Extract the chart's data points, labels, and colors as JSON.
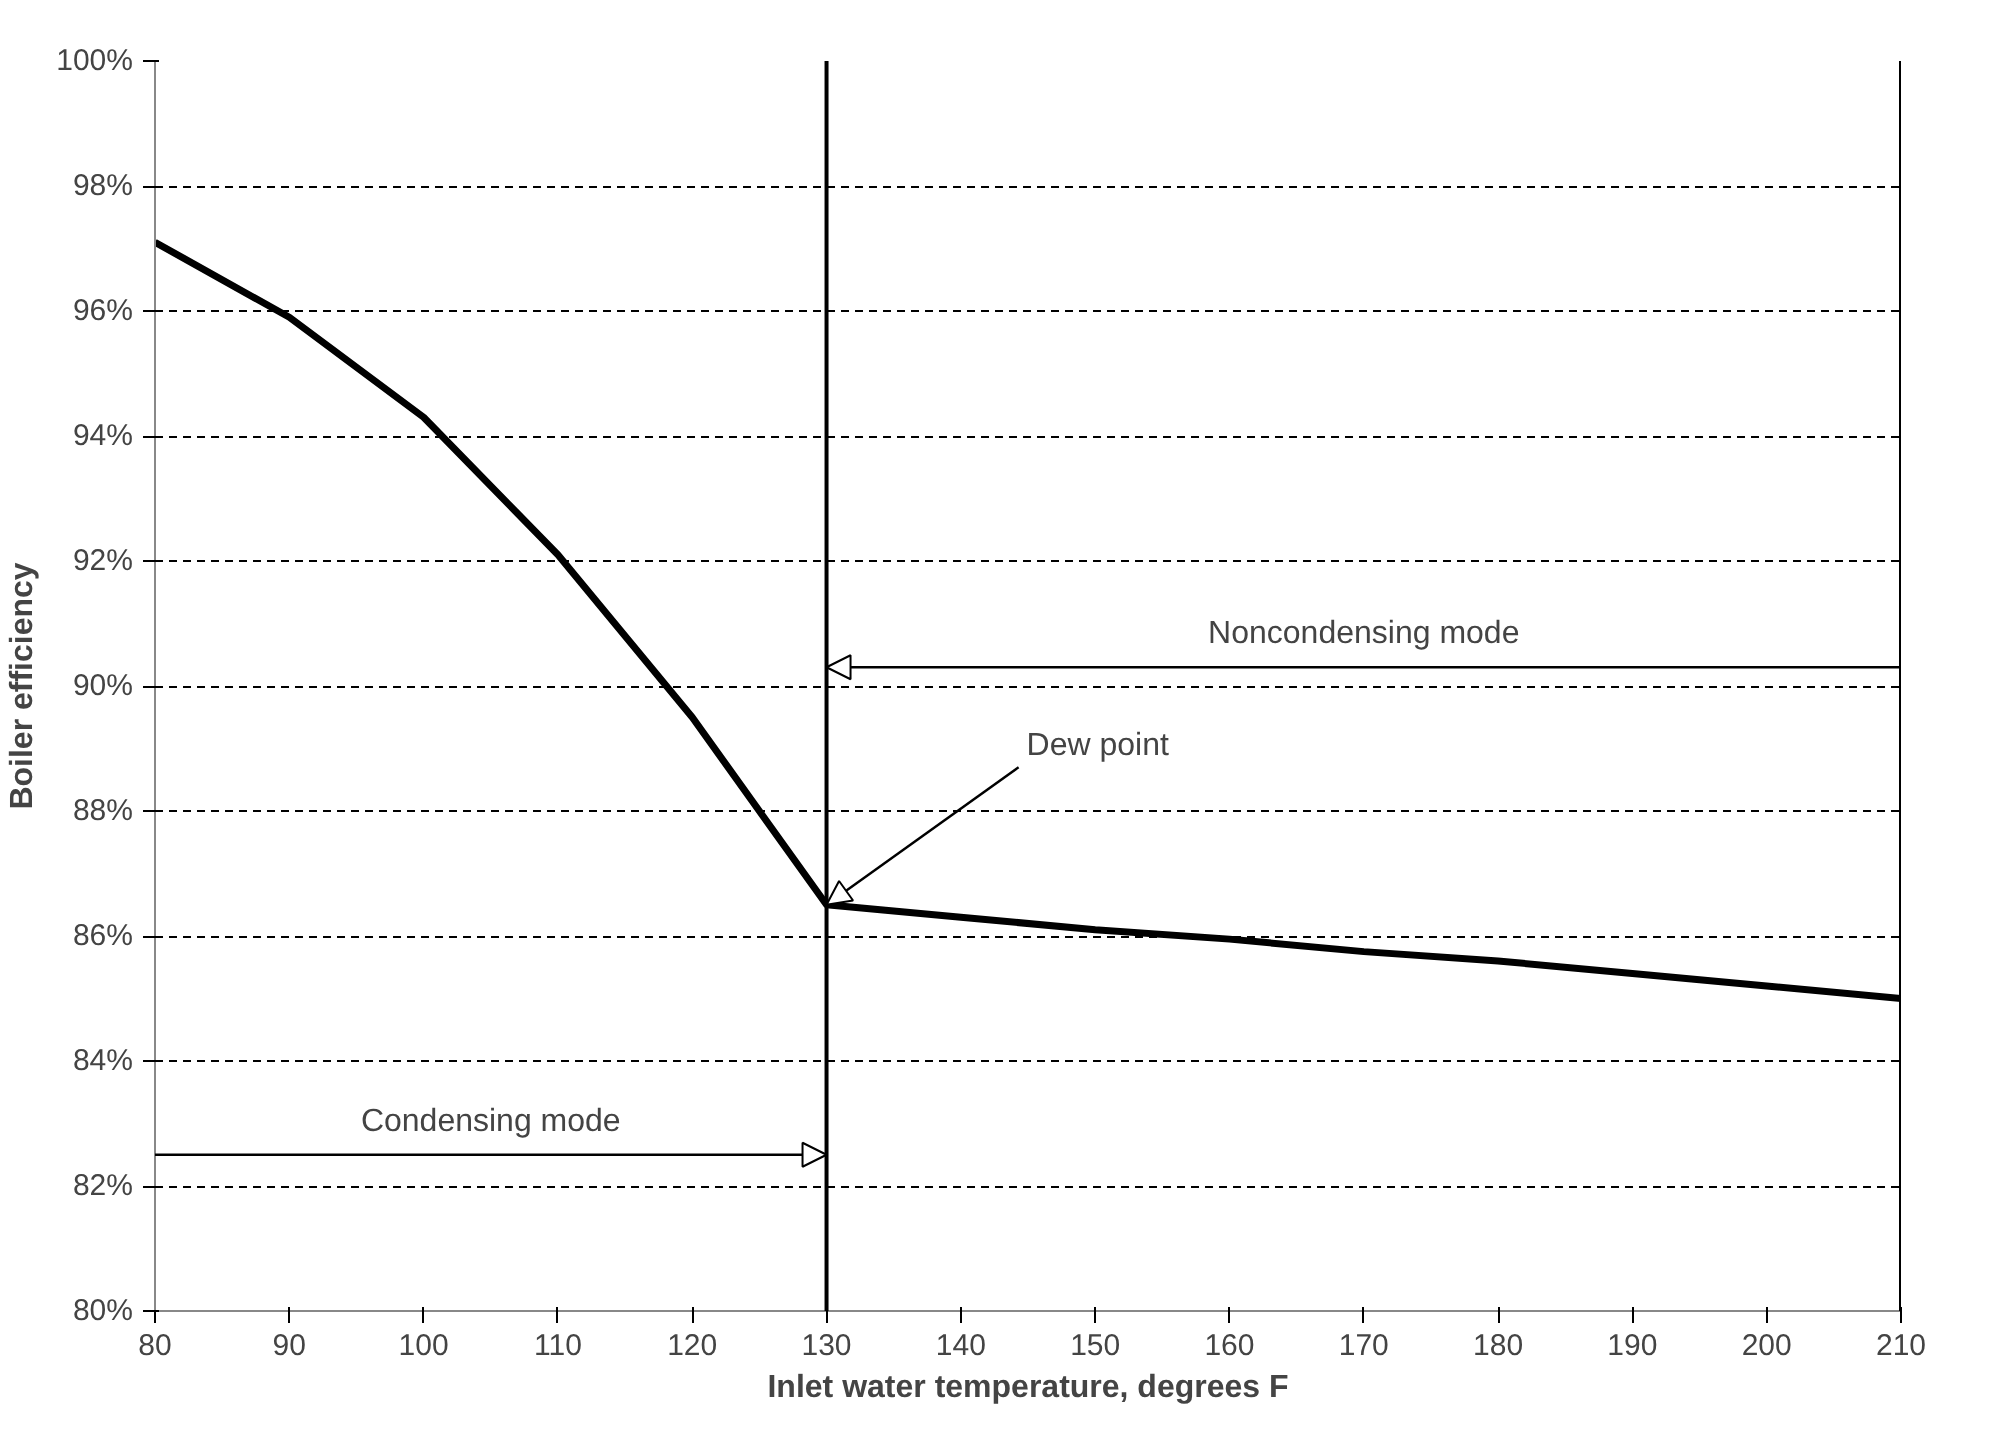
{
  "chart_data": {
    "type": "line",
    "xlabel": "Inlet water temperature, degrees F",
    "ylabel": "Boiler efficiency",
    "x": [
      80,
      90,
      100,
      110,
      120,
      130,
      140,
      150,
      160,
      170,
      180,
      190,
      200,
      210
    ],
    "series": [
      {
        "color": "#000000",
        "values": [
          97.1,
          95.9,
          94.3,
          92.1,
          89.5,
          86.5,
          86.3,
          86.1,
          85.95,
          85.75,
          85.6,
          85.4,
          85.2,
          85.0
        ]
      }
    ],
    "xlim": [
      80,
      210
    ],
    "xticks": [
      80,
      90,
      100,
      110,
      120,
      130,
      140,
      150,
      160,
      170,
      180,
      190,
      200,
      210
    ],
    "ylim": [
      80,
      100
    ],
    "yticks": [
      {
        "value": 80,
        "label": "80%"
      },
      {
        "value": 82,
        "label": "82%"
      },
      {
        "value": 84,
        "label": "84%"
      },
      {
        "value": 86,
        "label": "86%"
      },
      {
        "value": 88,
        "label": "88%"
      },
      {
        "value": 90,
        "label": "90%"
      },
      {
        "value": 92,
        "label": "92%"
      },
      {
        "value": 94,
        "label": "94%"
      },
      {
        "value": 96,
        "label": "96%"
      },
      {
        "value": 98,
        "label": "98%"
      },
      {
        "value": 100,
        "label": "100%"
      }
    ],
    "grid": "y",
    "line_style": "solid",
    "marker": "none",
    "ref_lines": [
      {
        "axis": "x",
        "value": 130,
        "label": null,
        "color": "#000000"
      },
      {
        "axis": "x",
        "value": 210,
        "label": null,
        "color": "#000000"
      }
    ],
    "annotations": [
      "Noncondensing mode",
      "Condensing mode",
      {
        "text": "Dew point",
        "x": 130,
        "y": 86.5
      }
    ]
  }
}
